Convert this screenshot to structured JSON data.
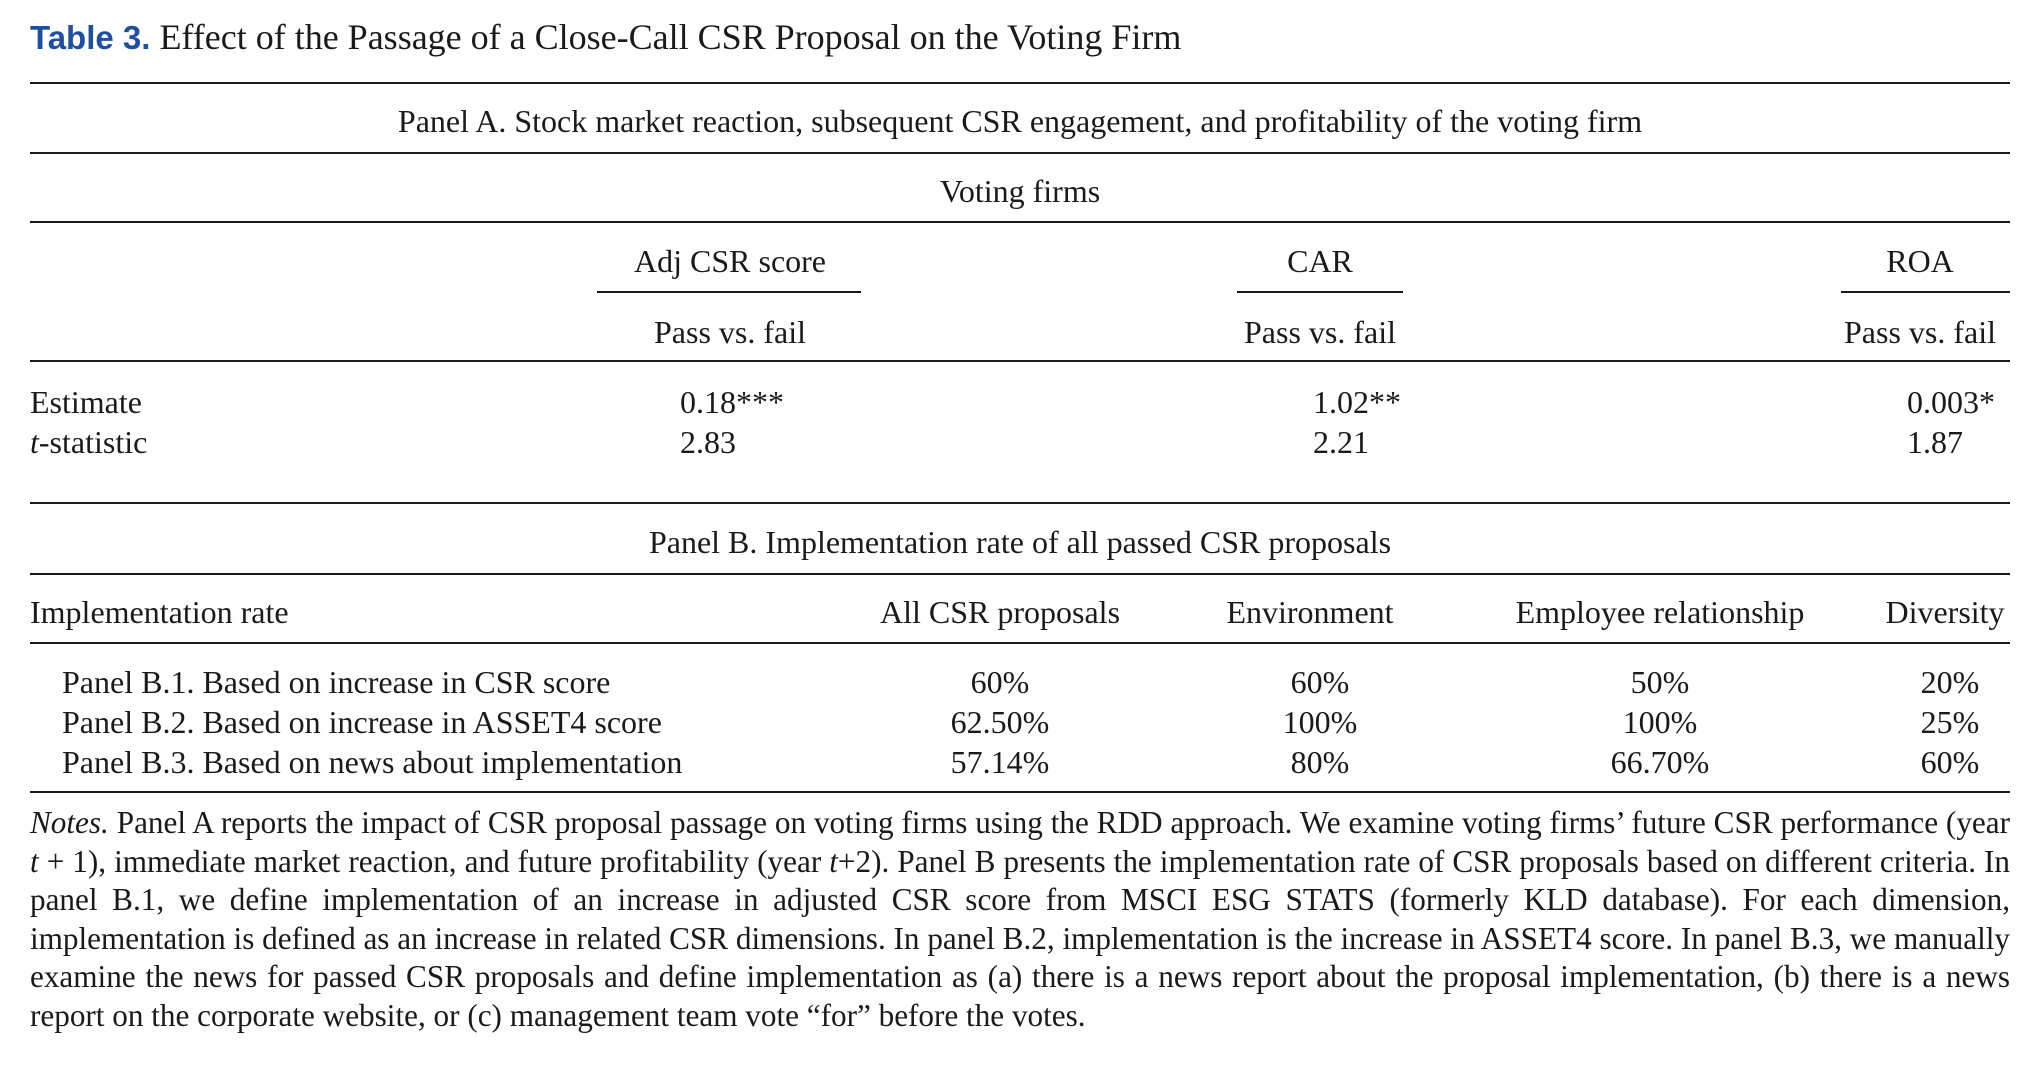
{
  "caption": {
    "label": "Table 3.",
    "title": "Effect of the Passage of a Close-Call CSR Proposal on the Voting Firm"
  },
  "panel_a": {
    "title": "Panel A. Stock market reaction, subsequent CSR engagement, and profitability of the voting firm",
    "group_header": "Voting firms",
    "columns": [
      {
        "name": "Adj CSR score",
        "sub": "Pass vs. fail",
        "estimate": "0.18***",
        "tstat": "2.83"
      },
      {
        "name": "CAR",
        "sub": "Pass vs. fail",
        "estimate": "1.02**",
        "tstat": "2.21"
      },
      {
        "name": "ROA",
        "sub": "Pass vs. fail",
        "estimate": "0.003*",
        "tstat": "1.87"
      }
    ],
    "row_labels": {
      "estimate": "Estimate",
      "tstat_italic": "t",
      "tstat_rest": "-statistic"
    }
  },
  "panel_b": {
    "title": "Panel B. Implementation rate of all passed CSR proposals",
    "header": [
      "Implementation rate",
      "All CSR proposals",
      "Environment",
      "Employee relationship",
      "Diversity"
    ],
    "rows": [
      {
        "label": "Panel B.1. Based on increase in CSR score",
        "values": [
          "60%",
          "60%",
          "50%",
          "20%"
        ]
      },
      {
        "label": "Panel B.2. Based on increase in ASSET4 score",
        "values": [
          "62.50%",
          "100%",
          "100%",
          "25%"
        ]
      },
      {
        "label": "Panel B.3. Based on news about implementation",
        "values": [
          "57.14%",
          "80%",
          "66.70%",
          "60%"
        ]
      }
    ]
  },
  "notes": {
    "label": "Notes.",
    "t1": " Panel A reports the impact of CSR proposal passage on voting firms using the RDD approach. We examine voting firms’ future CSR performance (year ",
    "t_var1": "t",
    "t2": " + 1), immediate market reaction, and future profitability (year ",
    "t_var2": "t",
    "t3": "+2). Panel B presents the implementation rate of CSR proposals based on different criteria. In panel B.1, we define implementation of an increase in adjusted CSR score from MSCI ESG STATS (formerly KLD database). For each dimension, implementation is defined as an increase in related CSR dimensions. In panel B.2, implementation is the increase in ASSET4 score. In panel B.3, we manually examine the news for passed CSR proposals and define implementation as (a) there is a news report about the proposal implementation, (b) there is a news report on the corporate website, or (c) management team vote “for” before the votes."
  }
}
